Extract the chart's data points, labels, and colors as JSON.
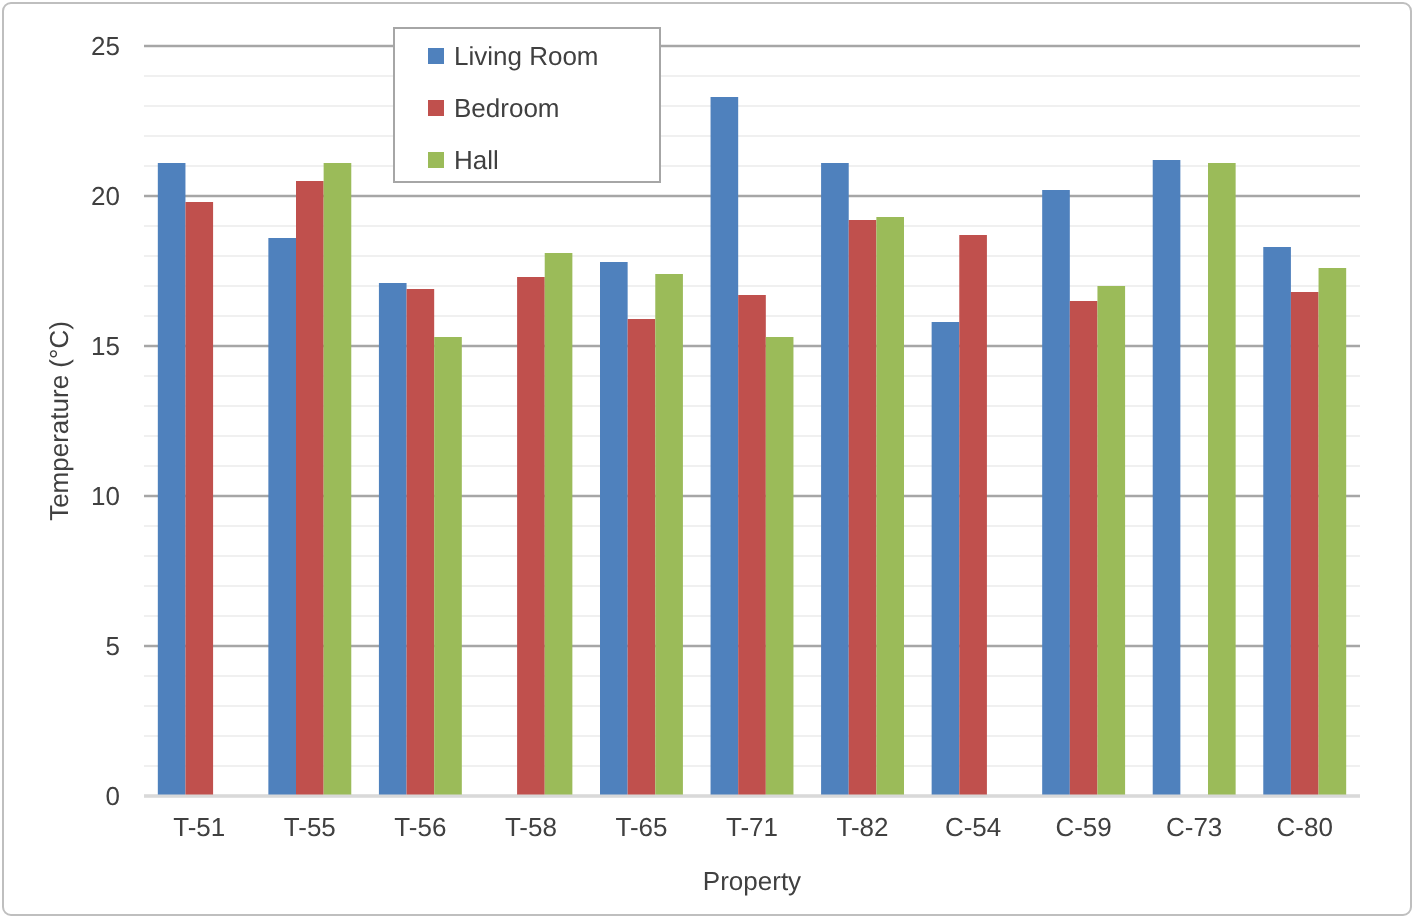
{
  "chart_data": {
    "type": "bar",
    "xlabel": "Property",
    "ylabel": "Temperature (°C)",
    "categories": [
      "T-51",
      "T-55",
      "T-56",
      "T-58",
      "T-65",
      "T-71",
      "T-82",
      "C-54",
      "C-59",
      "C-73",
      "C-80"
    ],
    "series": [
      {
        "name": "Living Room",
        "color": "#4f81bd",
        "values": [
          21.1,
          18.6,
          17.1,
          null,
          17.8,
          23.3,
          21.1,
          15.8,
          20.2,
          21.2,
          18.3
        ]
      },
      {
        "name": "Bedroom",
        "color": "#c0504d",
        "values": [
          19.8,
          20.5,
          16.9,
          17.3,
          15.9,
          16.7,
          19.2,
          18.7,
          16.5,
          null,
          16.8
        ]
      },
      {
        "name": "Hall",
        "color": "#9bbb59",
        "values": [
          null,
          21.1,
          15.3,
          18.1,
          17.4,
          15.3,
          19.3,
          null,
          17.0,
          21.1,
          17.6
        ]
      }
    ],
    "ylim": [
      0,
      25
    ],
    "yticks": [
      0,
      {
        "value": 1,
        "label": null
      },
      {
        "value": 2,
        "label": null
      },
      {
        "value": 3,
        "label": null
      },
      {
        "value": 4,
        "label": null
      },
      5,
      {
        "value": 6,
        "label": null
      },
      {
        "value": 7,
        "label": null
      },
      {
        "value": 8,
        "label": null
      },
      {
        "value": 9,
        "label": null
      },
      10,
      {
        "value": 11,
        "label": null
      },
      {
        "value": 12,
        "label": null
      },
      {
        "value": 13,
        "label": null
      },
      {
        "value": 14,
        "label": null
      },
      15,
      {
        "value": 16,
        "label": null
      },
      {
        "value": 17,
        "label": null
      },
      {
        "value": 18,
        "label": null
      },
      {
        "value": 19,
        "label": null
      },
      20,
      {
        "value": 21,
        "label": null
      },
      {
        "value": 22,
        "label": null
      },
      {
        "value": 23,
        "label": null
      },
      {
        "value": 24,
        "label": null
      },
      25
    ],
    "grid": "y",
    "legend": "top"
  }
}
